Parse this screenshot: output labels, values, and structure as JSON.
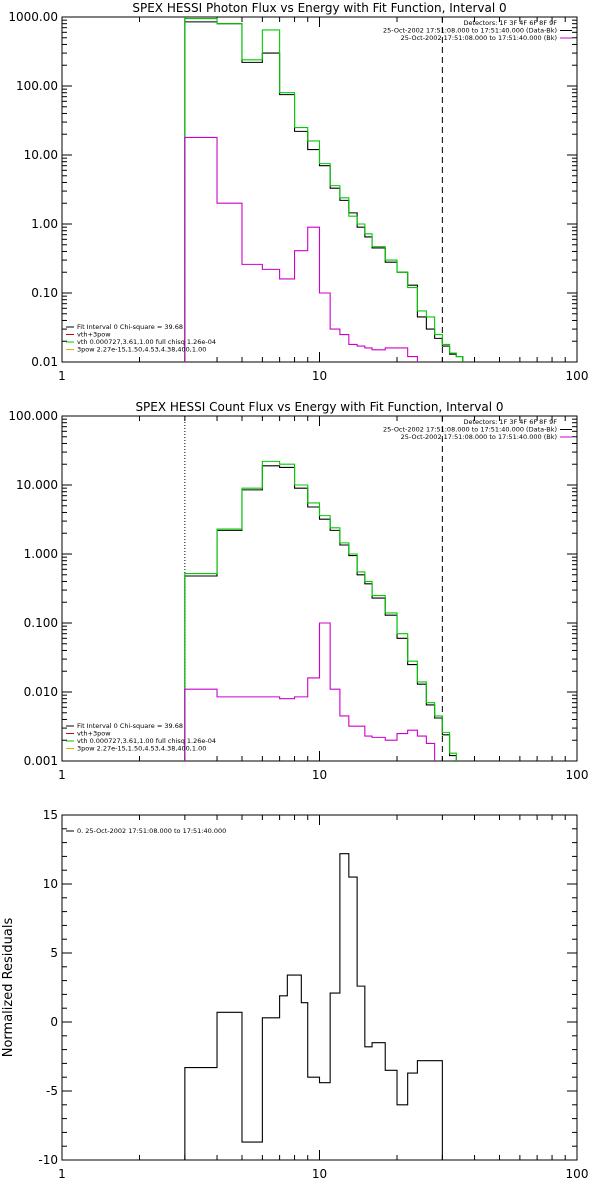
{
  "colors": {
    "data": "#000000",
    "total": "#00cc00",
    "thick": "#cc00cc",
    "thin": "#cc0000",
    "pow": "#e0b000",
    "axis": "#000000"
  },
  "chart_data": [
    {
      "type": "line",
      "title": "SPEX HESSI Photon Flux vs Energy with Fit Function, Interval 0",
      "xscale": "log",
      "yscale": "log",
      "xlim": [
        1,
        100
      ],
      "ylim": [
        0.01,
        1000
      ],
      "xticks": [
        {
          "v": 1,
          "t": "1"
        },
        {
          "v": 10,
          "t": "10"
        },
        {
          "v": 100,
          "t": "100"
        }
      ],
      "yticks": [
        {
          "v": 0.01,
          "t": "0.01"
        },
        {
          "v": 0.1,
          "t": "0.10"
        },
        {
          "v": 1,
          "t": "1.00"
        },
        {
          "v": 10,
          "t": "10.00"
        },
        {
          "v": 100,
          "t": "100.00"
        },
        {
          "v": 1000,
          "t": "1000.00"
        }
      ],
      "vlines": [
        {
          "x": 3.0,
          "style": "dotted",
          "color": "total"
        },
        {
          "x": 30.0,
          "style": "dashed",
          "color": "data"
        }
      ],
      "edges": [
        3.0,
        4.0,
        5.0,
        6.0,
        7.0,
        8.0,
        9.0,
        10.0,
        11.0,
        12.0,
        13.0,
        14.0,
        15.0,
        16.0,
        18.0,
        20.0,
        22.0,
        24.0,
        26.0,
        28.0,
        30.0,
        32.0,
        34.0,
        36.0
      ],
      "series": [
        {
          "name": "Data",
          "color": "data",
          "values": [
            850,
            800,
            220,
            300,
            75,
            22,
            12,
            7,
            3.3,
            2.2,
            1.45,
            0.9,
            0.65,
            0.45,
            0.28,
            0.2,
            0.13,
            0.045,
            0.03,
            0.022,
            0.017,
            0.013,
            0.012
          ]
        },
        {
          "name": "Total",
          "color": "total",
          "values": [
            950,
            800,
            240,
            650,
            80,
            25,
            16,
            7.5,
            3.6,
            2.4,
            1.3,
            1.0,
            0.72,
            0.47,
            0.3,
            0.2,
            0.12,
            0.055,
            0.045,
            0.025,
            0.018,
            0.0135,
            0.012
          ]
        },
        {
          "name": "vth+3pow",
          "color": "thick",
          "values": [
            18,
            2.0,
            0.26,
            0.22,
            0.16,
            0.41,
            0.9,
            0.1,
            0.03,
            0.025,
            0.018,
            0.017,
            0.016,
            0.015,
            0.016,
            0.016,
            0.012,
            0.009
          ]
        }
      ],
      "legend": [
        {
          "text": "Fit Interval 0   Chi-square = 39.68",
          "color": "data"
        },
        {
          "text": "vth+3pow",
          "color": "thin"
        },
        {
          "text": "vth 0.000727,3.61,1.00   full chisq 1.26e-04",
          "color": "total"
        },
        {
          "text": "3pow 2.27e-15,1.50,4.53,4.38,400,1.00",
          "color": "pow"
        }
      ],
      "info": [
        {
          "text": "Detectors: 1F 3F 4F 6F 8F 9F",
          "color": null
        },
        {
          "text": "25-Oct-2002 17:51:08.000 to 17:51:40.000 (Data-Bk)",
          "color": "data"
        },
        {
          "text": "25-Oct-2002 17:51:08.000 to 17:51:40.000 (Bk)",
          "color": "thick"
        }
      ]
    },
    {
      "type": "line",
      "title": "SPEX HESSI Count Flux vs Energy with Fit Function, Interval 0",
      "xscale": "log",
      "yscale": "log",
      "xlim": [
        1,
        100
      ],
      "ylim": [
        0.001,
        100
      ],
      "xticks": [
        {
          "v": 1,
          "t": "1"
        },
        {
          "v": 10,
          "t": "10"
        },
        {
          "v": 100,
          "t": "100"
        }
      ],
      "yticks": [
        {
          "v": 0.001,
          "t": "0.001"
        },
        {
          "v": 0.01,
          "t": "0.010"
        },
        {
          "v": 0.1,
          "t": "0.100"
        },
        {
          "v": 1,
          "t": "1.000"
        },
        {
          "v": 10,
          "t": "10.000"
        },
        {
          "v": 100,
          "t": "100.000"
        }
      ],
      "vlines": [
        {
          "x": 3.0,
          "style": "dotted",
          "color": "data"
        },
        {
          "x": 30.0,
          "style": "dashed",
          "color": "data"
        }
      ],
      "edges": [
        3.0,
        4.0,
        5.0,
        6.0,
        7.0,
        8.0,
        9.0,
        10.0,
        11.0,
        12.0,
        13.0,
        14.0,
        15.0,
        16.0,
        18.0,
        20.0,
        22.0,
        24.0,
        26.0,
        28.0,
        30.0,
        32.0,
        34.0,
        36.0
      ],
      "series": [
        {
          "name": "Data",
          "color": "data",
          "values": [
            0.48,
            2.2,
            8.5,
            19,
            18,
            9,
            4.8,
            3.2,
            2.2,
            1.35,
            0.95,
            0.5,
            0.37,
            0.23,
            0.13,
            0.06,
            0.025,
            0.013,
            0.0065,
            0.0042,
            0.0024,
            0.0012,
            0.0006
          ]
        },
        {
          "name": "Total",
          "color": "total",
          "values": [
            0.52,
            2.3,
            9,
            22,
            20,
            10,
            5.5,
            3.6,
            2.4,
            1.45,
            1.0,
            0.55,
            0.4,
            0.25,
            0.14,
            0.07,
            0.028,
            0.014,
            0.007,
            0.0045,
            0.0026,
            0.0013,
            0.0006
          ]
        },
        {
          "name": "vth+3pow",
          "color": "thick",
          "values": [
            0.011,
            0.0085,
            0.0085,
            0.0085,
            0.008,
            0.0085,
            0.016,
            0.1,
            0.011,
            0.0045,
            0.0032,
            0.0032,
            0.0023,
            0.0022,
            0.002,
            0.0025,
            0.0028,
            0.0023,
            0.0018
          ]
        }
      ],
      "legend": [
        {
          "text": "Fit Interval 0   Chi-square = 39.68",
          "color": "data"
        },
        {
          "text": "vth+3pow",
          "color": "thin"
        },
        {
          "text": "vth 0.000727,3.61,1.00   full chisq 1.26e-04",
          "color": "total"
        },
        {
          "text": "3pow 2.27e-15,1.50,4.53,4.38,400,1.00",
          "color": "pow"
        }
      ],
      "info": [
        {
          "text": "Detectors: 1F 3F 4F 6F 8F 9F",
          "color": null
        },
        {
          "text": "25-Oct-2002 17:51:08.000 to 17:51:40.000 (Data-Bk)",
          "color": "data"
        },
        {
          "text": "25-Oct-2002 17:51:08.000 to 17:51:40.000 (Bk)",
          "color": "thick"
        }
      ]
    },
    {
      "type": "line",
      "title": "",
      "xscale": "log",
      "yscale": "linear",
      "xlim": [
        1,
        100
      ],
      "ylim": [
        -10,
        15
      ],
      "ylabel": "Normalized Residuals",
      "xticks": [
        {
          "v": 1,
          "t": "1"
        },
        {
          "v": 10,
          "t": "10"
        },
        {
          "v": 100,
          "t": "100"
        }
      ],
      "yticks": [
        {
          "v": -10,
          "t": "-10"
        },
        {
          "v": -5,
          "t": "-5"
        },
        {
          "v": 0,
          "t": "0"
        },
        {
          "v": 5,
          "t": "5"
        },
        {
          "v": 10,
          "t": "10"
        },
        {
          "v": 15,
          "t": "15"
        }
      ],
      "edges": [
        3.0,
        3.5,
        4.0,
        4.5,
        5.0,
        5.5,
        6.0,
        6.5,
        7.0,
        7.5,
        8.0,
        8.5,
        9.0,
        9.5,
        10.0,
        11.0,
        12.0,
        13.0,
        14.0,
        15.0,
        16.0,
        18.0,
        20.0,
        22.0,
        24.0,
        26.0,
        28.0,
        30.0
      ],
      "series": [
        {
          "name": "0. 25-Oct-2002 17:51:08.000 to 17:51:40.000",
          "color": "data",
          "values": [
            -3.3,
            -3.3,
            0.7,
            0.7,
            -8.7,
            -8.7,
            0.3,
            0.3,
            1.9,
            3.4,
            3.4,
            1.4,
            -4.0,
            -4.0,
            -4.4,
            2.1,
            12.2,
            10.5,
            2.6,
            -1.8,
            -1.5,
            -3.5,
            -6.0,
            -3.7,
            -2.8,
            -2.8,
            -2.8
          ]
        }
      ],
      "legend": [
        {
          "text": "0. 25-Oct-2002 17:51:08.000 to 17:51:40.000",
          "color": "data"
        }
      ],
      "info": []
    }
  ]
}
